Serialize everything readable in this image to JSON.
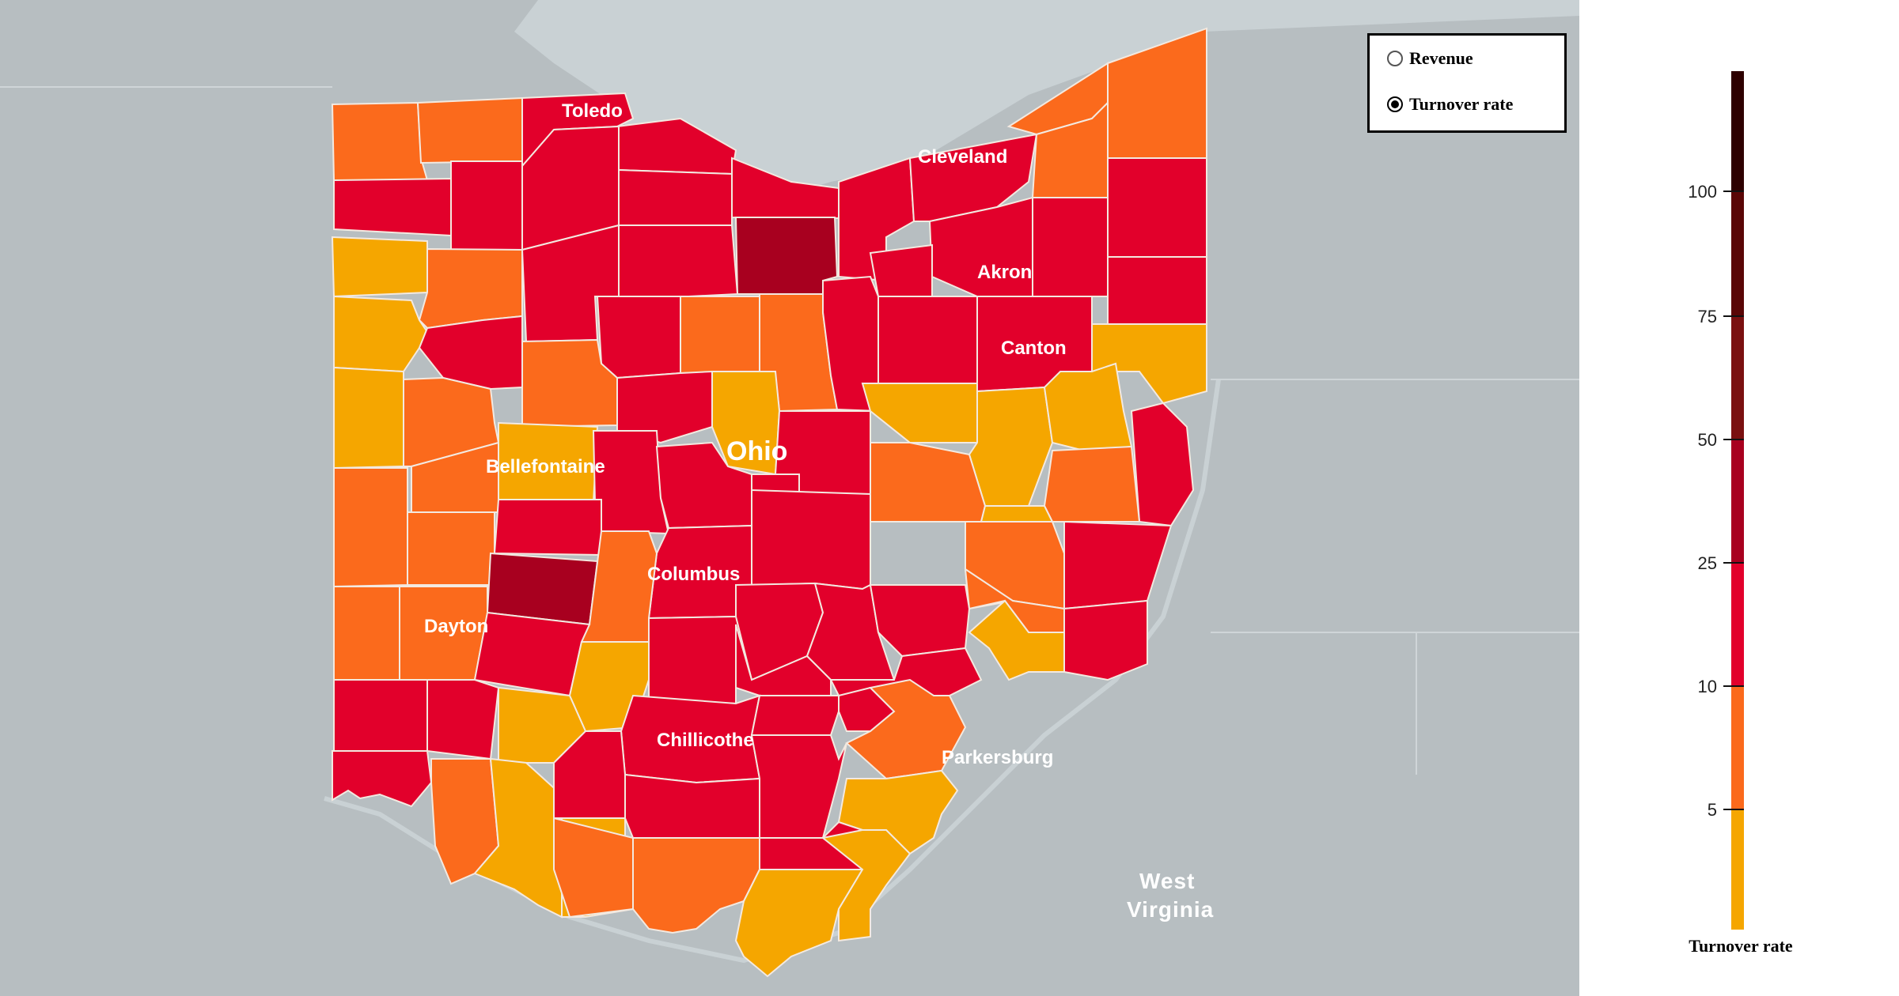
{
  "toggle": {
    "options": [
      {
        "label": "Revenue",
        "selected": false
      },
      {
        "label": "Turnover rate",
        "selected": true
      }
    ]
  },
  "map": {
    "state_label": "Ohio",
    "neighbor_label_line1": "West",
    "neighbor_label_line2": "Virginia",
    "cities": [
      "Toledo",
      "Cleveland",
      "Akron",
      "Canton",
      "Bellefontaine",
      "Columbus",
      "Dayton",
      "Chillicothe",
      "Parkersburg"
    ],
    "colors": {
      "water": "#c9d1d4",
      "land": "#b7bec1",
      "bin_0_5": "#f5a600",
      "bin_5_10": "#fb6a1c",
      "bin_10_25": "#e2002b",
      "bin_25_50": "#a8001f",
      "bin_50_75": "#7a1010",
      "bin_75_100": "#5a0606",
      "bin_100_plus": "#2e0000"
    }
  },
  "legend": {
    "title": "Turnover rate",
    "ticks": [
      "5",
      "10",
      "25",
      "50",
      "75",
      "100"
    ]
  }
}
